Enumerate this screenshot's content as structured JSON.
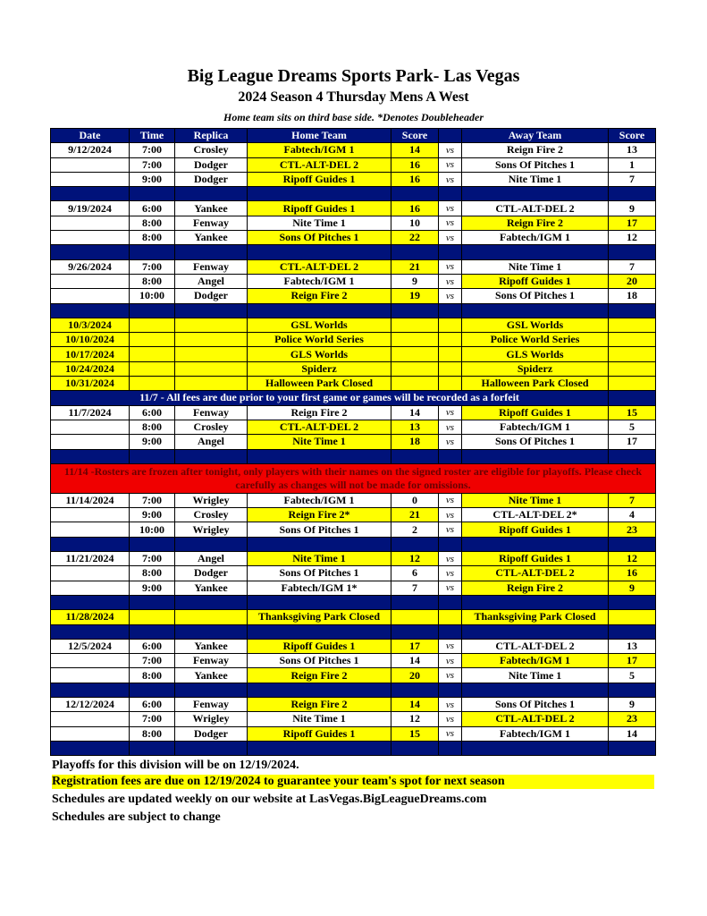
{
  "header": {
    "title": "Big League Dreams Sports Park- Las Vegas",
    "subtitle": "2024 Season 4 Thursday Mens A West",
    "note": "Home team sits on third base side.  *Denotes Doubleheader"
  },
  "columns": [
    "Date",
    "Time",
    "Replica",
    "Home Team",
    "Score",
    "",
    "Away Team",
    "Score"
  ],
  "highlight_color": "#ffff00",
  "header_color": "#00127a",
  "alert_color": "#f00000",
  "rows": [
    {
      "type": "game",
      "date": "9/12/2024",
      "time": "7:00",
      "replica": "Crosley",
      "home": "Fabtech/IGM 1",
      "hs": "14",
      "vs": "vs",
      "away": "Reign Fire 2",
      "as": "13",
      "win": "home"
    },
    {
      "type": "game",
      "date": "",
      "time": "7:00",
      "replica": "Dodger",
      "home": "CTL-ALT-DEL 2",
      "hs": "16",
      "vs": "vs",
      "away": "Sons Of Pitches 1",
      "as": "1",
      "win": "home"
    },
    {
      "type": "game",
      "date": "",
      "time": "9:00",
      "replica": "Dodger",
      "home": "Ripoff Guides 1",
      "hs": "16",
      "vs": "vs",
      "away": "Nite Time 1",
      "as": "7",
      "win": "home"
    },
    {
      "type": "sep"
    },
    {
      "type": "game",
      "date": "9/19/2024",
      "time": "6:00",
      "replica": "Yankee",
      "home": "Ripoff Guides 1",
      "hs": "16",
      "vs": "vs",
      "away": "CTL-ALT-DEL 2",
      "as": "9",
      "win": "home"
    },
    {
      "type": "game",
      "date": "",
      "time": "8:00",
      "replica": "Fenway",
      "home": "Nite Time 1",
      "hs": "10",
      "vs": "vs",
      "away": "Reign Fire 2",
      "as": "17",
      "win": "away"
    },
    {
      "type": "game",
      "date": "",
      "time": "8:00",
      "replica": "Yankee",
      "home": "Sons Of Pitches 1",
      "hs": "22",
      "vs": "vs",
      "away": "Fabtech/IGM 1",
      "as": "12",
      "win": "home"
    },
    {
      "type": "sep"
    },
    {
      "type": "game",
      "date": "9/26/2024",
      "time": "7:00",
      "replica": "Fenway",
      "home": "CTL-ALT-DEL 2",
      "hs": "21",
      "vs": "vs",
      "away": "Nite Time 1",
      "as": "7",
      "win": "home"
    },
    {
      "type": "game",
      "date": "",
      "time": "8:00",
      "replica": "Angel",
      "home": "Fabtech/IGM 1",
      "hs": "9",
      "vs": "vs",
      "away": "Ripoff Guides 1",
      "as": "20",
      "win": "away"
    },
    {
      "type": "game",
      "date": "",
      "time": "10:00",
      "replica": "Dodger",
      "home": "Reign Fire 2",
      "hs": "19",
      "vs": "vs",
      "away": "Sons Of Pitches 1",
      "as": "18",
      "win": "home"
    },
    {
      "type": "sep"
    },
    {
      "type": "event",
      "date": "10/3/2024",
      "home": "GSL Worlds",
      "away": "GSL Worlds"
    },
    {
      "type": "event",
      "date": "10/10/2024",
      "home": "Police World Series",
      "away": "Police World Series"
    },
    {
      "type": "event",
      "date": "10/17/2024",
      "home": "GLS Worlds",
      "away": "GLS Worlds"
    },
    {
      "type": "event",
      "date": "10/24/2024",
      "home": "Spiderz",
      "away": "Spiderz"
    },
    {
      "type": "event",
      "date": "10/31/2024",
      "home": "Halloween Park Closed",
      "away": "Halloween Park Closed"
    },
    {
      "type": "notice",
      "text": "11/7 - All fees are due prior to your first game or games will be recorded as a forfeit"
    },
    {
      "type": "game",
      "date": "11/7/2024",
      "time": "6:00",
      "replica": "Fenway",
      "home": "Reign Fire 2",
      "hs": "14",
      "vs": "vs",
      "away": "Ripoff Guides 1",
      "as": "15",
      "win": "away"
    },
    {
      "type": "game",
      "date": "",
      "time": "8:00",
      "replica": "Crosley",
      "home": "CTL-ALT-DEL 2",
      "hs": "13",
      "vs": "vs",
      "away": "Fabtech/IGM 1",
      "as": "5",
      "win": "home"
    },
    {
      "type": "game",
      "date": "",
      "time": "9:00",
      "replica": "Angel",
      "home": "Nite Time 1",
      "hs": "18",
      "vs": "vs",
      "away": "Sons Of Pitches 1",
      "as": "17",
      "win": "home"
    },
    {
      "type": "sep"
    },
    {
      "type": "red",
      "text": "11/14 -Rosters are frozen after tonight, only players with their names on the signed roster are eligible for playoffs. Please check carefully as changes will not be made for omissions."
    },
    {
      "type": "game",
      "date": "11/14/2024",
      "time": "7:00",
      "replica": "Wrigley",
      "home": "Fabtech/IGM 1",
      "hs": "0",
      "vs": "vs",
      "away": "Nite Time 1",
      "as": "7",
      "win": "away"
    },
    {
      "type": "game",
      "date": "",
      "time": "9:00",
      "replica": "Crosley",
      "home": "Reign Fire 2*",
      "hs": "21",
      "vs": "vs",
      "away": "CTL-ALT-DEL 2*",
      "as": "4",
      "win": "home"
    },
    {
      "type": "game",
      "date": "",
      "time": "10:00",
      "replica": "Wrigley",
      "home": "Sons Of Pitches 1",
      "hs": "2",
      "vs": "vs",
      "away": "Ripoff Guides 1",
      "as": "23",
      "win": "away"
    },
    {
      "type": "sep"
    },
    {
      "type": "game",
      "date": "11/21/2024",
      "time": "7:00",
      "replica": "Angel",
      "home": "Nite Time 1",
      "hs": "12",
      "vs": "vs",
      "away": "Ripoff Guides 1",
      "as": "12",
      "win": "both"
    },
    {
      "type": "game",
      "date": "",
      "time": "8:00",
      "replica": "Dodger",
      "home": "Sons Of Pitches 1",
      "hs": "6",
      "vs": "vs",
      "away": "CTL-ALT-DEL 2",
      "as": "16",
      "win": "away"
    },
    {
      "type": "game",
      "date": "",
      "time": "9:00",
      "replica": "Yankee",
      "home": "Fabtech/IGM 1*",
      "hs": "7",
      "vs": "vs",
      "away": "Reign Fire 2",
      "as": "9",
      "win": "away"
    },
    {
      "type": "sep"
    },
    {
      "type": "event",
      "date": "11/28/2024",
      "home": "Thanksgiving Park Closed",
      "away": "Thanksgiving Park Closed"
    },
    {
      "type": "sep"
    },
    {
      "type": "game",
      "date": "12/5/2024",
      "time": "6:00",
      "replica": "Yankee",
      "home": "Ripoff Guides 1",
      "hs": "17",
      "vs": "vs",
      "away": "CTL-ALT-DEL 2",
      "as": "13",
      "win": "home"
    },
    {
      "type": "game",
      "date": "",
      "time": "7:00",
      "replica": "Fenway",
      "home": "Sons Of Pitches 1",
      "hs": "14",
      "vs": "vs",
      "away": "Fabtech/IGM 1",
      "as": "17",
      "win": "away"
    },
    {
      "type": "game",
      "date": "",
      "time": "8:00",
      "replica": "Yankee",
      "home": "Reign Fire 2",
      "hs": "20",
      "vs": "vs",
      "away": "Nite Time 1",
      "as": "5",
      "win": "home"
    },
    {
      "type": "sep"
    },
    {
      "type": "game",
      "date": "12/12/2024",
      "time": "6:00",
      "replica": "Fenway",
      "home": "Reign Fire 2",
      "hs": "14",
      "vs": "vs",
      "away": "Sons Of Pitches 1",
      "as": "9",
      "win": "home"
    },
    {
      "type": "game",
      "date": "",
      "time": "7:00",
      "replica": "Wrigley",
      "home": "Nite Time 1",
      "hs": "12",
      "vs": "vs",
      "away": "CTL-ALT-DEL 2",
      "as": "23",
      "win": "away"
    },
    {
      "type": "game",
      "date": "",
      "time": "8:00",
      "replica": "Dodger",
      "home": "Ripoff Guides 1",
      "hs": "15",
      "vs": "vs",
      "away": "Fabtech/IGM 1",
      "as": "14",
      "win": "home"
    },
    {
      "type": "sep"
    }
  ],
  "footer": [
    "Playoffs for this division will be on 12/19/2024.",
    "Registration fees are due on 12/19/2024 to guarantee your team's spot for next season",
    "Schedules are updated weekly on our website at LasVegas.BigLeagueDreams.com",
    "Schedules are subject to change"
  ]
}
